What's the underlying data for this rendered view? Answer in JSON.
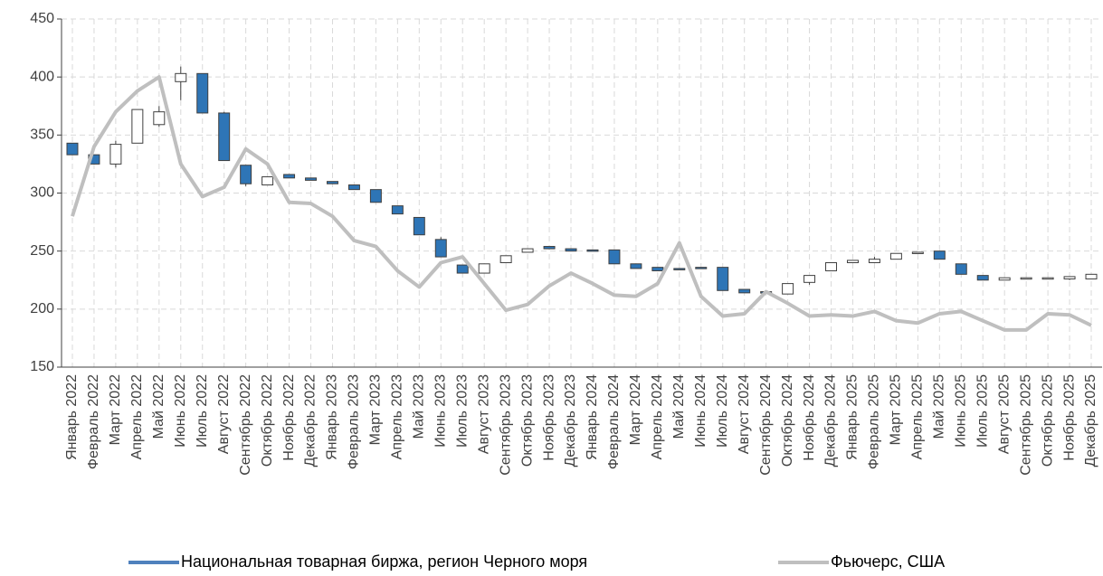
{
  "chart_data": {
    "type": "candlestick",
    "categories": [
      "Январь 2022",
      "Февраль 2022",
      "Март 2022",
      "Апрель 2022",
      "Май 2022",
      "Июнь 2022",
      "Июль 2022",
      "Август 2022",
      "Сентябрь 2022",
      "Октябрь 2022",
      "Ноябрь 2022",
      "Декабрь 2022",
      "Январь 2023",
      "Февраль 2023",
      "Март 2023",
      "Апрель 2023",
      "Май 2023",
      "Июнь 2023",
      "Июль 2023",
      "Август 2023",
      "Сентябрь 2023",
      "Октябрь 2023",
      "Ноябрь 2023",
      "Декабрь 2023",
      "Январь 2024",
      "Февраль 2024",
      "Март 2024",
      "Апрель 2024",
      "Май 2024",
      "Июнь 2024",
      "Июль 2024",
      "Август 2024",
      "Сентябрь 2024",
      "Октябрь 2024",
      "Ноябрь 2024",
      "Декабрь 2024",
      "Январь 2025",
      "Февраль 2025",
      "Март 2025",
      "Апрель 2025",
      "Май 2025",
      "Июнь 2025",
      "Июль 2025",
      "Август 2025",
      "Сентябрь 2025",
      "Октябрь 2025",
      "Ноябрь 2025",
      "Декабрь 2025"
    ],
    "series": [
      {
        "name": "Национальная товарная биржа, регион Черного моря",
        "type": "candlestick",
        "color": "#2e75b6",
        "up_color": "#ffffff",
        "edge_color": "#404040",
        "open": [
          343,
          333,
          325,
          343,
          359,
          396,
          403,
          369,
          324,
          307,
          316,
          313,
          310,
          307,
          303,
          289,
          279,
          260,
          238,
          231,
          240,
          249,
          254,
          252,
          251,
          251,
          239,
          236,
          235,
          236,
          236,
          217,
          215,
          213,
          223,
          233,
          240,
          240,
          243,
          248,
          250,
          239,
          229,
          225,
          226,
          226,
          226,
          226
        ],
        "close": [
          333,
          325,
          342,
          372,
          370,
          403,
          369,
          328,
          308,
          314,
          313,
          311,
          308,
          303,
          292,
          282,
          264,
          245,
          231,
          239,
          246,
          252,
          252,
          250,
          250,
          239,
          235,
          233,
          234,
          235,
          216,
          214,
          214,
          222,
          229,
          240,
          242,
          243,
          248,
          249,
          243,
          230,
          225,
          227,
          227,
          227,
          228,
          230
        ],
        "high": [
          343,
          333,
          345,
          372,
          375,
          409,
          403,
          370,
          324,
          314,
          316,
          313,
          310,
          307,
          303,
          289,
          279,
          262,
          238,
          239,
          246,
          252,
          254,
          252,
          251,
          251,
          239,
          236,
          235,
          236,
          236,
          217,
          215,
          222,
          229,
          240,
          242,
          245,
          248,
          249,
          250,
          239,
          229,
          227,
          227,
          227,
          228,
          230
        ],
        "low": [
          333,
          325,
          322,
          343,
          357,
          380,
          369,
          328,
          306,
          307,
          313,
          311,
          308,
          303,
          292,
          282,
          264,
          245,
          231,
          231,
          240,
          249,
          252,
          250,
          250,
          239,
          235,
          233,
          234,
          235,
          216,
          214,
          214,
          213,
          221,
          233,
          240,
          240,
          243,
          248,
          243,
          230,
          225,
          225,
          226,
          226,
          225,
          226
        ]
      },
      {
        "name": "Фьючерс, США",
        "type": "line",
        "color": "#bfbfbf",
        "values": [
          280,
          340,
          370,
          388,
          400,
          325,
          297,
          305,
          338,
          325,
          292,
          291,
          280,
          259,
          254,
          233,
          219,
          240,
          245,
          222,
          199,
          204,
          220,
          231,
          222,
          212,
          211,
          222,
          257,
          211,
          194,
          196,
          215,
          205,
          194,
          195,
          194,
          198,
          190,
          188,
          196,
          198,
          190,
          182,
          182,
          196,
          195,
          186
        ]
      }
    ],
    "ylim": [
      150,
      450
    ],
    "yticks": [
      150,
      200,
      250,
      300,
      350,
      400,
      450
    ],
    "grid": true,
    "legend": "bottom"
  }
}
